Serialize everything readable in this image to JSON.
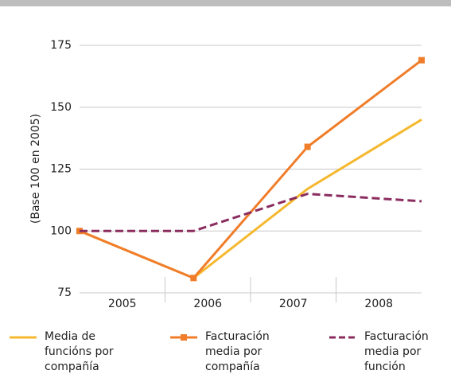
{
  "chart_data": {
    "type": "line",
    "y_label": "(Base 100 en 2005)",
    "categories": [
      "2005",
      "2006",
      "2007",
      "2008"
    ],
    "ylim": [
      75,
      175
    ],
    "yticks": [
      75,
      100,
      125,
      150,
      175
    ],
    "grid": true,
    "series": [
      {
        "name": "Media de funcións por compañía",
        "color": "#f5b82e",
        "style": "solid",
        "marker": "none",
        "values": [
          100,
          81,
          117,
          145
        ]
      },
      {
        "name": "Facturación media por compañía",
        "color": "#f07d2a",
        "style": "solid",
        "marker": "square",
        "values": [
          100,
          81,
          134,
          169
        ]
      },
      {
        "name": "Facturación media por función",
        "color": "#8b2c5f",
        "style": "dashed",
        "marker": "none",
        "values": [
          100,
          100,
          115,
          112
        ]
      }
    ]
  }
}
